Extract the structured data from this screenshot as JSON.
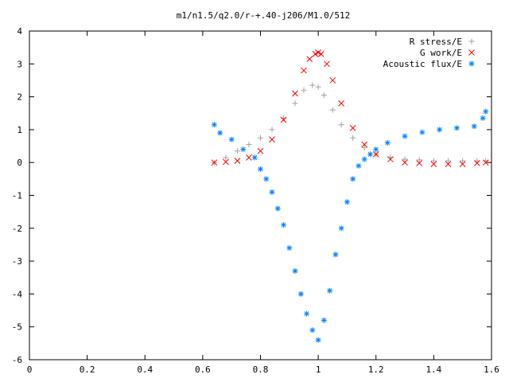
{
  "chart_data": {
    "type": "scatter",
    "title": "m1/n1.5/q2.0/r-+.40-j206/M1.0/512",
    "xlabel": "",
    "ylabel": "",
    "xlim": [
      0,
      1.6
    ],
    "ylim": [
      -6,
      4
    ],
    "x_ticks": [
      "0",
      "0.2",
      "0.4",
      "0.6",
      "0.8",
      "1",
      "1.2",
      "1.4",
      "1.6"
    ],
    "y_ticks": [
      "4",
      "3",
      "2",
      "1",
      "0",
      "-1",
      "-2",
      "-3",
      "-4",
      "-5",
      "-6"
    ],
    "grid": false,
    "legend": "top-right",
    "series": [
      {
        "name": "R stress/E",
        "marker": "+",
        "color": "#a0a0a0",
        "x": [
          0.64,
          0.68,
          0.72,
          0.76,
          0.8,
          0.84,
          0.88,
          0.92,
          0.95,
          0.98,
          1.0,
          1.02,
          1.05,
          1.08,
          1.12,
          1.16,
          1.2,
          1.25,
          1.3,
          1.35,
          1.4,
          1.45,
          1.5,
          1.55,
          1.58
        ],
        "y": [
          0.0,
          0.15,
          0.35,
          0.55,
          0.75,
          1.0,
          1.35,
          1.8,
          2.2,
          2.35,
          2.3,
          2.05,
          1.6,
          1.15,
          0.75,
          0.45,
          0.25,
          0.15,
          0.1,
          0.08,
          0.05,
          0.05,
          0.05,
          0.05,
          0.05
        ]
      },
      {
        "name": "G work/E",
        "marker": "x",
        "color": "#ff0000",
        "x": [
          0.64,
          0.68,
          0.72,
          0.76,
          0.8,
          0.84,
          0.88,
          0.92,
          0.95,
          0.97,
          0.99,
          1.0,
          1.01,
          1.03,
          1.05,
          1.08,
          1.12,
          1.16,
          1.2,
          1.25,
          1.3,
          1.35,
          1.4,
          1.45,
          1.5,
          1.55,
          1.58
        ],
        "y": [
          0.0,
          0.02,
          0.05,
          0.15,
          0.35,
          0.7,
          1.3,
          2.1,
          2.8,
          3.15,
          3.3,
          3.35,
          3.3,
          3.0,
          2.5,
          1.8,
          1.05,
          0.55,
          0.25,
          0.1,
          0.0,
          -0.02,
          -0.05,
          -0.05,
          -0.05,
          -0.02,
          0.0
        ]
      },
      {
        "name": "Acoustic flux/E",
        "marker": "*",
        "color": "#0080ff",
        "x": [
          0.64,
          0.66,
          0.7,
          0.74,
          0.78,
          0.8,
          0.82,
          0.84,
          0.86,
          0.88,
          0.9,
          0.92,
          0.94,
          0.96,
          0.98,
          1.0,
          1.02,
          1.04,
          1.06,
          1.08,
          1.1,
          1.12,
          1.14,
          1.16,
          1.18,
          1.2,
          1.24,
          1.3,
          1.36,
          1.42,
          1.48,
          1.54,
          1.57,
          1.58
        ],
        "y": [
          1.15,
          0.9,
          0.7,
          0.4,
          0.15,
          -0.2,
          -0.5,
          -0.9,
          -1.4,
          -1.9,
          -2.6,
          -3.3,
          -4.0,
          -4.6,
          -5.1,
          -5.4,
          -4.8,
          -3.9,
          -2.8,
          -2.0,
          -1.2,
          -0.5,
          -0.1,
          0.1,
          0.25,
          0.4,
          0.6,
          0.8,
          0.92,
          1.0,
          1.05,
          1.1,
          1.35,
          1.55
        ]
      }
    ]
  }
}
